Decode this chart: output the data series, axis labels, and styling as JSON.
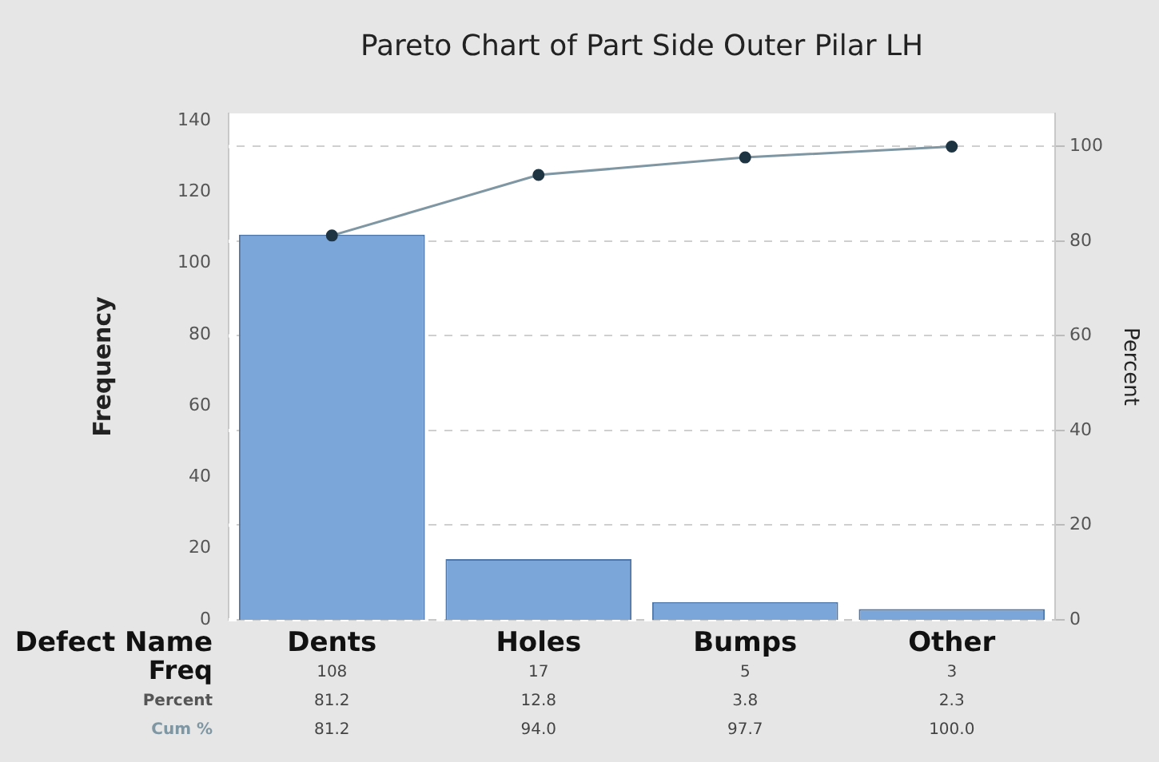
{
  "chart_data": {
    "type": "bar",
    "title": "Pareto Chart of Part Side Outer Pilar LH",
    "xlabel": "Defect Name",
    "ylabel": "Frequency",
    "y2label": "Percent",
    "categories": [
      "Dents",
      "Holes",
      "Bumps",
      "Other"
    ],
    "series": [
      {
        "name": "Freq",
        "color": "#7aa6d9",
        "values": [
          108,
          17,
          5,
          3
        ],
        "value_labels": [
          "108",
          "17",
          "5",
          "3"
        ]
      },
      {
        "name": "Cum %",
        "type": "line",
        "axis": "y2",
        "color": "#7f96a3",
        "values": [
          81.2,
          94.0,
          97.7,
          100.0
        ],
        "value_labels": [
          "81.2",
          "94.0",
          "97.7",
          "100.0"
        ]
      }
    ],
    "ylim": [
      0,
      142
    ],
    "yticks": [
      0,
      20,
      40,
      60,
      80,
      100,
      120,
      140
    ],
    "y2lim": [
      0,
      107
    ],
    "y2ticks": [
      0,
      20,
      40,
      60,
      80,
      100
    ],
    "grid": "y",
    "legend": false,
    "marker": "circle",
    "line_style": "solid",
    "annotations": [
      "Percent",
      "81.2",
      "12.8",
      "3.8",
      "2.3"
    ]
  }
}
